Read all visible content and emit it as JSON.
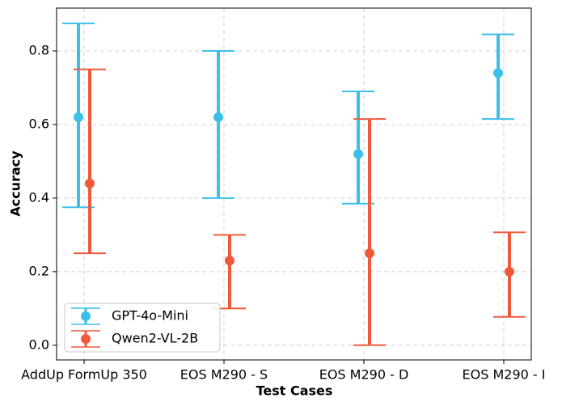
{
  "chart_data": {
    "type": "errorbar",
    "x_label": "Test Cases",
    "y_label": "Accuracy",
    "categories": [
      "AddUp FormUp 350",
      "EOS M290 - S",
      "EOS M290 - D",
      "EOS M290 - I"
    ],
    "ylim": [
      -0.04,
      0.9165
    ],
    "yticks": [
      {
        "value": 0,
        "label": "0.0"
      },
      0.2,
      0.4,
      0.6,
      0.8
    ],
    "grid": true,
    "legend": "lower left",
    "series": [
      {
        "name": "GPT-4o-Mini",
        "color": "#3cbfe9",
        "values": [
          0.62,
          0.62,
          0.52,
          0.74
        ],
        "lower": [
          0.375,
          0.4,
          0.385,
          0.615
        ],
        "upper": [
          0.875,
          0.8,
          0.69,
          0.845
        ]
      },
      {
        "name": "Qwen2-VL-2B",
        "color": "#f05a3b",
        "values": [
          0.44,
          0.23,
          0.25,
          0.2
        ],
        "lower": [
          0.25,
          0.1,
          0.0,
          0.077
        ],
        "upper": [
          0.75,
          0.3,
          0.615,
          0.307
        ]
      }
    ]
  }
}
